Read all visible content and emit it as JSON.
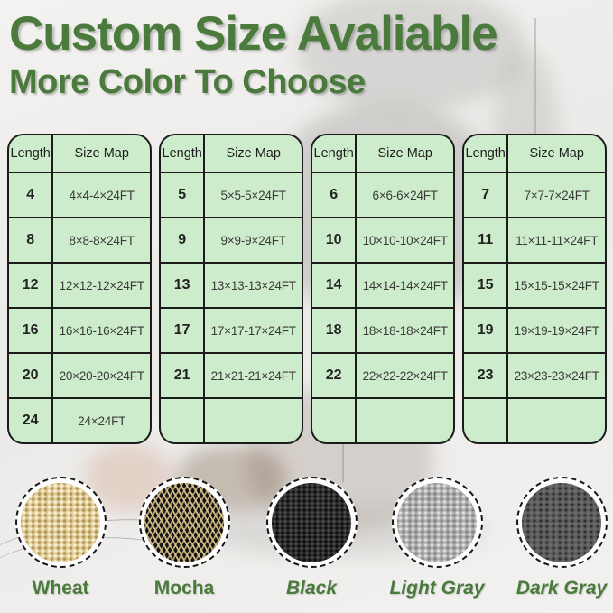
{
  "theme": {
    "accent_green": "#4a7b3c",
    "table_fill": "#cdeccb",
    "table_border": "#1b1b1b"
  },
  "header": {
    "title": "Custom Size Avaliable",
    "subtitle": "More Color To Choose"
  },
  "tables": [
    {
      "headers": [
        "Length",
        "Size Map"
      ],
      "rows": [
        [
          "4",
          "4×4-4×24FT"
        ],
        [
          "8",
          "8×8-8×24FT"
        ],
        [
          "12",
          "12×12-12×24FT"
        ],
        [
          "16",
          "16×16-16×24FT"
        ],
        [
          "20",
          "20×20-20×24FT"
        ],
        [
          "24",
          "24×24FT"
        ]
      ]
    },
    {
      "headers": [
        "Length",
        "Size Map"
      ],
      "rows": [
        [
          "5",
          "5×5-5×24FT"
        ],
        [
          "9",
          "9×9-9×24FT"
        ],
        [
          "13",
          "13×13-13×24FT"
        ],
        [
          "17",
          "17×17-17×24FT"
        ],
        [
          "21",
          "21×21-21×24FT"
        ],
        [
          "",
          ""
        ]
      ]
    },
    {
      "headers": [
        "Length",
        "Size Map"
      ],
      "rows": [
        [
          "6",
          "6×6-6×24FT"
        ],
        [
          "10",
          "10×10-10×24FT"
        ],
        [
          "14",
          "14×14-14×24FT"
        ],
        [
          "18",
          "18×18-18×24FT"
        ],
        [
          "22",
          "22×22-22×24FT"
        ],
        [
          "",
          ""
        ]
      ]
    },
    {
      "headers": [
        "Length",
        "Size Map"
      ],
      "rows": [
        [
          "7",
          "7×7-7×24FT"
        ],
        [
          "11",
          "11×11-11×24FT"
        ],
        [
          "15",
          "15×15-15×24FT"
        ],
        [
          "19",
          "19×19-19×24FT"
        ],
        [
          "23",
          "23×23-23×24FT"
        ],
        [
          "",
          ""
        ]
      ]
    }
  ],
  "swatches": [
    {
      "id": "wheat",
      "label": "Wheat",
      "italic": false,
      "base_color": "#dfcb93"
    },
    {
      "id": "mocha",
      "label": "Mocha",
      "italic": false,
      "base_color": "#161616"
    },
    {
      "id": "black",
      "label": "Black",
      "italic": true,
      "base_color": "#2b2b2b"
    },
    {
      "id": "light-gray",
      "label": "Light Gray",
      "italic": true,
      "base_color": "#aeaeae"
    },
    {
      "id": "dark-gray",
      "label": "Dark Gray",
      "italic": true,
      "base_color": "#5c5c5c"
    }
  ]
}
